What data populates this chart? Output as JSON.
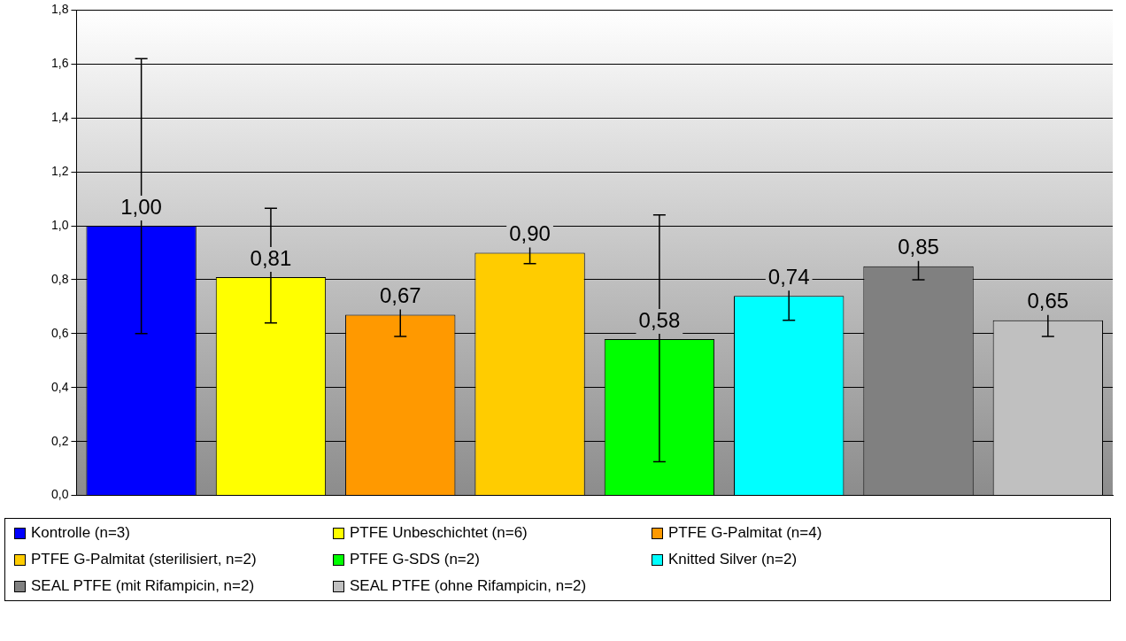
{
  "chart_data": {
    "type": "bar",
    "categories": [
      null,
      null,
      null,
      null,
      null,
      null,
      null,
      null
    ],
    "series": [
      {
        "name": "Kontrolle (n=3)",
        "color": "#0000ff",
        "values": [
          1.0,
          null,
          null,
          null,
          null,
          null,
          null,
          null
        ],
        "errors": [
          [
            0.6,
            1.62
          ],
          null,
          null,
          null,
          null,
          null,
          null,
          null
        ],
        "value_labels": [
          "1,00",
          null,
          null,
          null,
          null,
          null,
          null,
          null
        ]
      },
      {
        "name": "PTFE Unbeschichtet (n=6)",
        "color": "#ffff00",
        "values": [
          null,
          0.81,
          null,
          null,
          null,
          null,
          null,
          null
        ],
        "errors": [
          null,
          [
            0.64,
            1.065
          ],
          null,
          null,
          null,
          null,
          null,
          null
        ],
        "value_labels": [
          null,
          "0,81",
          null,
          null,
          null,
          null,
          null,
          null
        ]
      },
      {
        "name": "PTFE G-Palmitat (n=4)",
        "color": "#ff9900",
        "values": [
          null,
          null,
          0.67,
          null,
          null,
          null,
          null,
          null
        ],
        "errors": [
          null,
          null,
          [
            0.59,
            0.77
          ],
          null,
          null,
          null,
          null,
          null
        ],
        "value_labels": [
          null,
          null,
          "0,67",
          null,
          null,
          null,
          null,
          null
        ]
      },
      {
        "name": "PTFE G-Palmitat (sterilisiert, n=2)",
        "color": "#ffcc00",
        "values": [
          null,
          null,
          null,
          0.9,
          null,
          null,
          null,
          null
        ],
        "errors": [
          null,
          null,
          null,
          [
            0.86,
            0.945
          ],
          null,
          null,
          null,
          null
        ],
        "value_labels": [
          null,
          null,
          null,
          "0,90",
          null,
          null,
          null,
          null
        ]
      },
      {
        "name": "PTFE G-SDS (n=2)",
        "color": "#00ff00",
        "values": [
          null,
          null,
          null,
          null,
          0.58,
          null,
          null,
          null
        ],
        "errors": [
          null,
          null,
          null,
          null,
          [
            0.125,
            1.04
          ],
          null,
          null,
          null
        ],
        "value_labels": [
          null,
          null,
          null,
          null,
          "0,58",
          null,
          null,
          null
        ]
      },
      {
        "name": "Knitted Silver (n=2)",
        "color": "#00ffff",
        "values": [
          null,
          null,
          null,
          null,
          null,
          0.74,
          null,
          null
        ],
        "errors": [
          null,
          null,
          null,
          null,
          null,
          [
            0.65,
            0.82
          ],
          null,
          null
        ],
        "value_labels": [
          null,
          null,
          null,
          null,
          null,
          "0,74",
          null,
          null
        ]
      },
      {
        "name": "SEAL PTFE (mit Rifampicin, n=2)",
        "color": "#808080",
        "values": [
          null,
          null,
          null,
          null,
          null,
          null,
          0.85,
          null
        ],
        "errors": [
          null,
          null,
          null,
          null,
          null,
          null,
          [
            0.8,
            0.9
          ],
          null
        ],
        "value_labels": [
          null,
          null,
          null,
          null,
          null,
          null,
          "0,85",
          null
        ]
      },
      {
        "name": "SEAL PTFE (ohne Rifampicin, n=2)",
        "color": "#c0c0c0",
        "values": [
          null,
          null,
          null,
          null,
          null,
          null,
          null,
          0.65
        ],
        "errors": [
          null,
          null,
          null,
          null,
          null,
          null,
          null,
          [
            0.59,
            0.71
          ]
        ],
        "value_labels": [
          null,
          null,
          null,
          null,
          null,
          null,
          null,
          "0,65"
        ]
      }
    ],
    "ylim": [
      0,
      1.8
    ],
    "yticks": [
      {
        "value": 0,
        "label": "0,0"
      },
      {
        "value": 0.2,
        "label": "0,2"
      },
      {
        "value": 0.4,
        "label": "0,4"
      },
      {
        "value": 0.6,
        "label": "0,6"
      },
      {
        "value": 0.8,
        "label": "0,8"
      },
      {
        "value": 1.0,
        "label": "1,0"
      },
      {
        "value": 1.2,
        "label": "1,2"
      },
      {
        "value": 1.4,
        "label": "1,4"
      },
      {
        "value": 1.6,
        "label": "1,6"
      },
      {
        "value": 1.8,
        "label": "1,8"
      }
    ],
    "grid": "y",
    "legend": "bottom"
  }
}
